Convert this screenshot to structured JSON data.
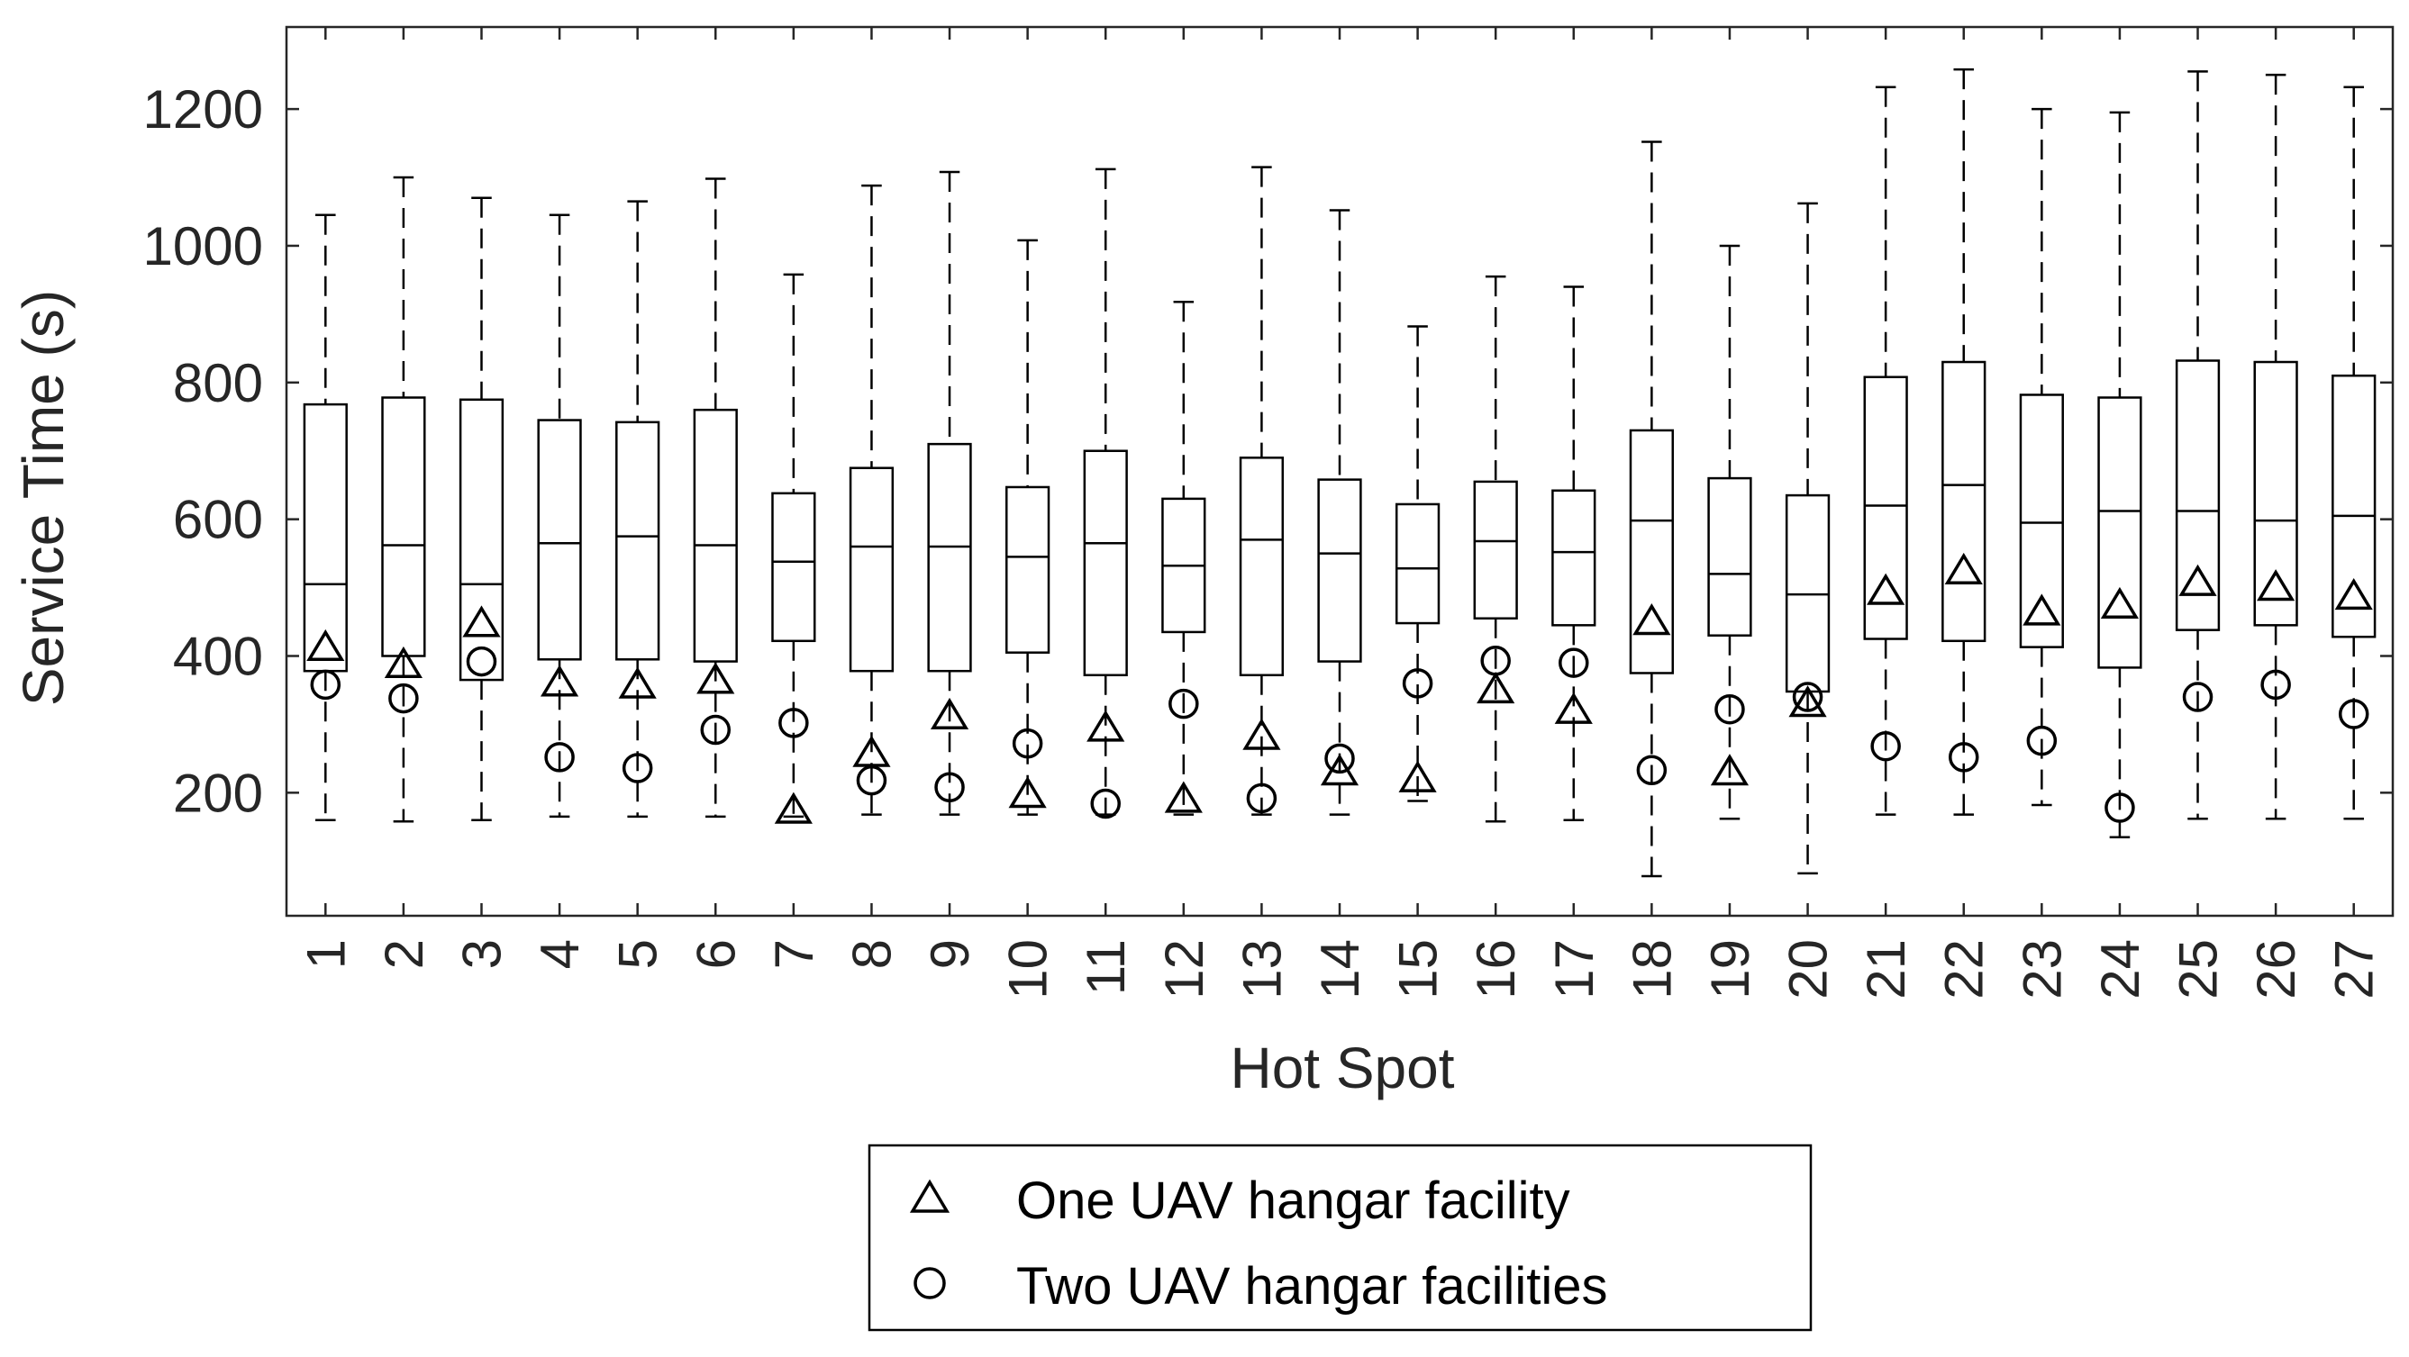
{
  "chart_data": {
    "type": "box",
    "xlabel": "Hot Spot",
    "ylabel": "Service Time (s)",
    "ylim": [
      20,
      1320
    ],
    "yticks": [
      200,
      400,
      600,
      800,
      1000,
      1200
    ],
    "categories": [
      "1",
      "2",
      "3",
      "4",
      "5",
      "6",
      "7",
      "8",
      "9",
      "10",
      "11",
      "12",
      "13",
      "14",
      "15",
      "16",
      "17",
      "18",
      "19",
      "20",
      "21",
      "22",
      "23",
      "24",
      "25",
      "26",
      "27"
    ],
    "boxes": [
      {
        "hot_spot": "1",
        "min": 160,
        "q1": 378,
        "median": 505,
        "q3": 768,
        "max": 1045
      },
      {
        "hot_spot": "2",
        "min": 158,
        "q1": 400,
        "median": 562,
        "q3": 778,
        "max": 1100
      },
      {
        "hot_spot": "3",
        "min": 160,
        "q1": 365,
        "median": 505,
        "q3": 775,
        "max": 1070
      },
      {
        "hot_spot": "4",
        "min": 165,
        "q1": 395,
        "median": 565,
        "q3": 745,
        "max": 1045
      },
      {
        "hot_spot": "5",
        "min": 165,
        "q1": 395,
        "median": 575,
        "q3": 742,
        "max": 1065
      },
      {
        "hot_spot": "6",
        "min": 165,
        "q1": 392,
        "median": 562,
        "q3": 760,
        "max": 1098
      },
      {
        "hot_spot": "7",
        "min": 165,
        "q1": 422,
        "median": 538,
        "q3": 638,
        "max": 958
      },
      {
        "hot_spot": "8",
        "min": 168,
        "q1": 378,
        "median": 560,
        "q3": 675,
        "max": 1088
      },
      {
        "hot_spot": "9",
        "min": 168,
        "q1": 378,
        "median": 560,
        "q3": 710,
        "max": 1108
      },
      {
        "hot_spot": "10",
        "min": 168,
        "q1": 405,
        "median": 545,
        "q3": 647,
        "max": 1008
      },
      {
        "hot_spot": "11",
        "min": 168,
        "q1": 372,
        "median": 565,
        "q3": 700,
        "max": 1112
      },
      {
        "hot_spot": "12",
        "min": 168,
        "q1": 435,
        "median": 532,
        "q3": 630,
        "max": 918
      },
      {
        "hot_spot": "13",
        "min": 168,
        "q1": 372,
        "median": 570,
        "q3": 690,
        "max": 1115
      },
      {
        "hot_spot": "14",
        "min": 168,
        "q1": 392,
        "median": 550,
        "q3": 658,
        "max": 1052
      },
      {
        "hot_spot": "15",
        "min": 188,
        "q1": 448,
        "median": 528,
        "q3": 622,
        "max": 882
      },
      {
        "hot_spot": "16",
        "min": 158,
        "q1": 455,
        "median": 568,
        "q3": 655,
        "max": 955
      },
      {
        "hot_spot": "17",
        "min": 160,
        "q1": 445,
        "median": 552,
        "q3": 642,
        "max": 940
      },
      {
        "hot_spot": "18",
        "min": 78,
        "q1": 375,
        "median": 598,
        "q3": 730,
        "max": 1152
      },
      {
        "hot_spot": "19",
        "min": 162,
        "q1": 430,
        "median": 520,
        "q3": 660,
        "max": 1000
      },
      {
        "hot_spot": "20",
        "min": 82,
        "q1": 348,
        "median": 490,
        "q3": 635,
        "max": 1062
      },
      {
        "hot_spot": "21",
        "min": 168,
        "q1": 425,
        "median": 620,
        "q3": 808,
        "max": 1232
      },
      {
        "hot_spot": "22",
        "min": 168,
        "q1": 422,
        "median": 650,
        "q3": 830,
        "max": 1258
      },
      {
        "hot_spot": "23",
        "min": 182,
        "q1": 413,
        "median": 595,
        "q3": 782,
        "max": 1200
      },
      {
        "hot_spot": "24",
        "min": 135,
        "q1": 383,
        "median": 612,
        "q3": 778,
        "max": 1195
      },
      {
        "hot_spot": "25",
        "min": 162,
        "q1": 438,
        "median": 612,
        "q3": 832,
        "max": 1255
      },
      {
        "hot_spot": "26",
        "min": 162,
        "q1": 445,
        "median": 598,
        "q3": 830,
        "max": 1250
      },
      {
        "hot_spot": "27",
        "min": 162,
        "q1": 428,
        "median": 605,
        "q3": 810,
        "max": 1232
      }
    ],
    "series": [
      {
        "name": "One UAV hangar facility",
        "marker": "triangle",
        "values": [
          410,
          385,
          445,
          358,
          355,
          362,
          172,
          255,
          310,
          195,
          292,
          188,
          280,
          228,
          218,
          348,
          318,
          448,
          228,
          328,
          492,
          522,
          462,
          472,
          505,
          498,
          485
        ]
      },
      {
        "name": "Two UAV hangar facilities",
        "marker": "circle",
        "values": [
          358,
          338,
          392,
          252,
          236,
          292,
          302,
          218,
          208,
          272,
          184,
          330,
          192,
          250,
          360,
          393,
          390,
          233,
          322,
          340,
          268,
          252,
          276,
          178,
          340,
          358,
          315
        ]
      }
    ],
    "legend": {
      "placement": "bottom-center"
    },
    "grid": false
  }
}
